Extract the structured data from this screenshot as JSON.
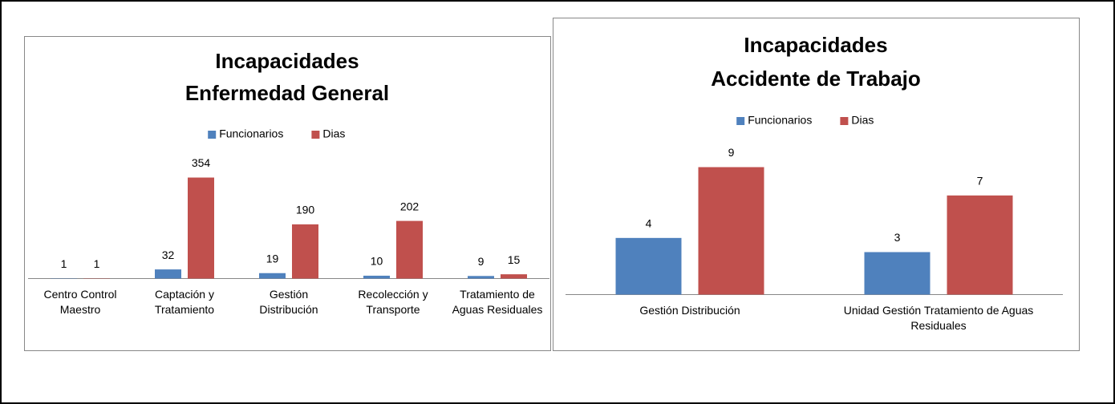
{
  "chart_data": [
    {
      "type": "bar",
      "title": [
        "Incapacidades",
        "Enfermedad General"
      ],
      "categories": [
        "Centro Control Maestro",
        "Captación y Tratamiento",
        "Gestión Distribución",
        "Recolección y Transporte",
        "Tratamiento de Aguas Residuales"
      ],
      "series": [
        {
          "name": "Funcionarios",
          "color": "#4f81bd",
          "values": [
            1,
            32,
            19,
            10,
            9
          ]
        },
        {
          "name": "Dias",
          "color": "#c0504d",
          "values": [
            1,
            354,
            190,
            202,
            15
          ]
        }
      ],
      "legend": "top"
    },
    {
      "type": "bar",
      "title": [
        "Incapacidades",
        "Accidente de Trabajo"
      ],
      "categories": [
        "Gestión Distribución",
        "Unidad Gestión Tratamiento de Aguas Residuales"
      ],
      "series": [
        {
          "name": "Funcionarios",
          "color": "#4f81bd",
          "values": [
            4,
            3
          ]
        },
        {
          "name": "Dias",
          "color": "#c0504d",
          "values": [
            9,
            7
          ]
        }
      ],
      "legend": "top"
    }
  ]
}
